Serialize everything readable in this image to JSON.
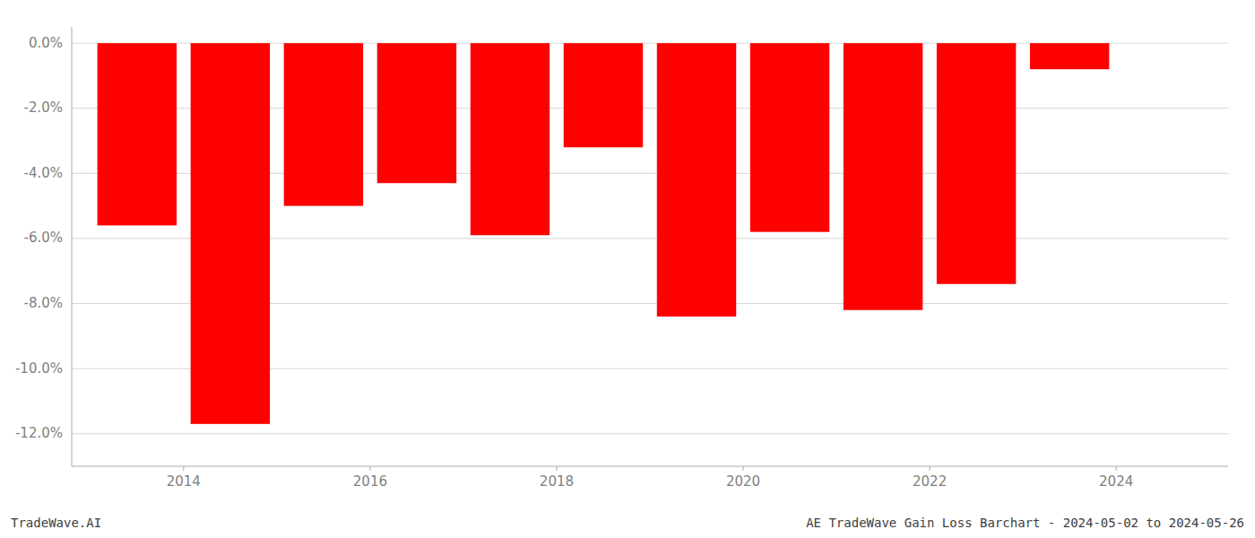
{
  "chart_data": {
    "type": "bar",
    "x": [
      2013.5,
      2014.5,
      2015.5,
      2016.5,
      2017.5,
      2018.5,
      2019.5,
      2020.5,
      2021.5,
      2022.5,
      2023.5
    ],
    "values": [
      -5.6,
      -11.7,
      -5.0,
      -4.3,
      -5.9,
      -3.2,
      -8.4,
      -5.8,
      -8.2,
      -7.4,
      -0.8
    ],
    "color": "#ff0000",
    "xlim": [
      2012.8,
      2025.2
    ],
    "xticks": [
      2014,
      2016,
      2018,
      2020,
      2022,
      2024
    ],
    "ylim": [
      -13.0,
      0.5
    ],
    "yticks": [
      {
        "value": 0.0,
        "label": "0.0%"
      },
      {
        "value": -2.0,
        "label": "-2.0%"
      },
      {
        "value": -4.0,
        "label": "-4.0%"
      },
      {
        "value": -6.0,
        "label": "-6.0%"
      },
      {
        "value": -8.0,
        "label": "-8.0%"
      },
      {
        "value": -10.0,
        "label": "-10.0%"
      },
      {
        "value": -12.0,
        "label": "-12.0%"
      }
    ],
    "grid": true,
    "annotations": [
      "TradeWave.AI",
      "AE TradeWave Gain Loss Barchart - 2024-05-02 to 2024-05-26"
    ]
  }
}
